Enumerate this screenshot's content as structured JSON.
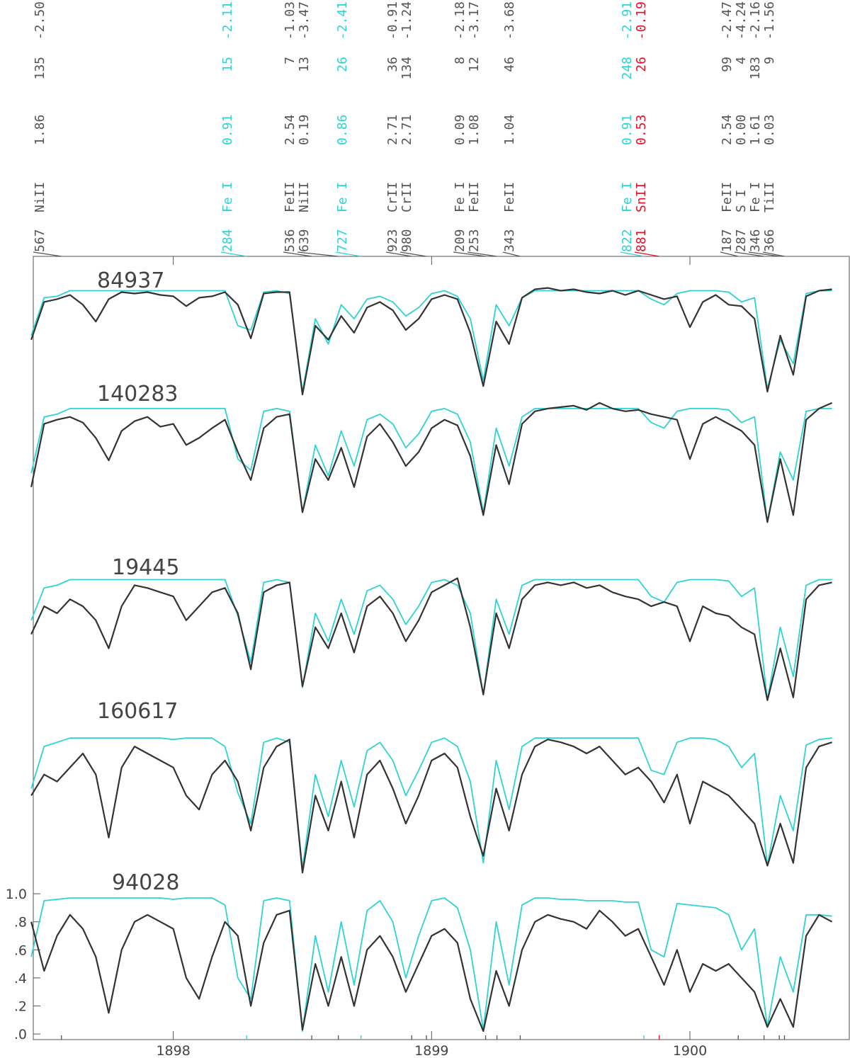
{
  "chart_data": {
    "type": "line",
    "xlim": [
      1897.458,
      1900.617
    ],
    "ylim": [
      -0.04,
      5.545
    ],
    "xticks": [
      1898,
      1899,
      1900
    ],
    "yticks": [
      {
        "value": 0,
        "label": ".0"
      },
      {
        "value": 0.2,
        "label": ".2"
      },
      {
        "value": 0.4,
        "label": ".4"
      },
      {
        "value": 0.6,
        "label": ".6"
      },
      {
        "value": 0.8,
        "label": ".8"
      },
      {
        "value": 1,
        "label": "1.0"
      }
    ],
    "observed_color": "#333333",
    "synthetic_color": "#2ed3d3",
    "x": [
      1897.45,
      1897.5,
      1897.55,
      1897.6,
      1897.65,
      1897.7,
      1897.75,
      1897.8,
      1897.85,
      1897.9,
      1897.95,
      1898.0,
      1898.05,
      1898.1,
      1898.15,
      1898.2,
      1898.25,
      1898.3,
      1898.35,
      1898.4,
      1898.45,
      1898.5,
      1898.55,
      1898.6,
      1898.65,
      1898.7,
      1898.75,
      1898.8,
      1898.85,
      1898.9,
      1898.95,
      1899.0,
      1899.05,
      1899.1,
      1899.15,
      1899.2,
      1899.25,
      1899.3,
      1899.35,
      1899.4,
      1899.45,
      1899.5,
      1899.55,
      1899.6,
      1899.65,
      1899.7,
      1899.75,
      1899.8,
      1899.85,
      1899.9,
      1899.95,
      1900.0,
      1900.05,
      1900.1,
      1900.15,
      1900.2,
      1900.25,
      1900.3,
      1900.35,
      1900.4,
      1900.45,
      1900.5,
      1900.55
    ],
    "panels": [
      {
        "name": "84937",
        "observed": [
          4.95,
          5.22,
          5.24,
          5.27,
          5.2,
          5.08,
          5.24,
          5.29,
          5.28,
          5.29,
          5.27,
          5.26,
          5.19,
          5.25,
          5.26,
          5.29,
          5.2,
          4.96,
          5.28,
          5.29,
          5.29,
          4.56,
          5.05,
          4.95,
          5.12,
          5.0,
          5.18,
          5.22,
          5.16,
          5.02,
          5.1,
          5.24,
          5.27,
          5.24,
          5.0,
          4.62,
          5.08,
          4.92,
          5.25,
          5.31,
          5.32,
          5.3,
          5.31,
          5.29,
          5.28,
          5.3,
          5.27,
          5.3,
          5.27,
          5.24,
          5.26,
          5.04,
          5.22,
          5.27,
          5.2,
          5.19,
          5.1,
          4.58,
          4.98,
          4.7,
          5.26,
          5.3,
          5.31
        ],
        "synthetic": [
          4.98,
          5.25,
          5.26,
          5.3,
          5.3,
          5.3,
          5.3,
          5.3,
          5.3,
          5.3,
          5.3,
          5.3,
          5.3,
          5.3,
          5.3,
          5.3,
          5.05,
          5.02,
          5.29,
          5.3,
          5.28,
          4.58,
          5.1,
          4.92,
          5.2,
          5.1,
          5.24,
          5.26,
          5.22,
          5.12,
          5.18,
          5.28,
          5.3,
          5.26,
          5.1,
          4.66,
          5.2,
          5.05,
          5.25,
          5.3,
          5.3,
          5.3,
          5.3,
          5.3,
          5.3,
          5.3,
          5.3,
          5.3,
          5.24,
          5.2,
          5.28,
          5.3,
          5.3,
          5.3,
          5.29,
          5.22,
          5.25,
          4.6,
          4.95,
          4.78,
          5.28,
          5.3,
          5.3
        ]
      },
      {
        "name": "140283",
        "observed": [
          3.9,
          4.35,
          4.38,
          4.4,
          4.36,
          4.25,
          4.09,
          4.3,
          4.37,
          4.4,
          4.33,
          4.35,
          4.2,
          4.25,
          4.32,
          4.38,
          4.15,
          3.95,
          4.32,
          4.4,
          4.42,
          3.72,
          4.1,
          3.95,
          4.18,
          3.9,
          4.26,
          4.35,
          4.22,
          4.05,
          4.15,
          4.32,
          4.38,
          4.34,
          4.12,
          3.7,
          4.2,
          3.92,
          4.35,
          4.44,
          4.46,
          4.47,
          4.48,
          4.45,
          4.5,
          4.46,
          4.44,
          4.45,
          4.42,
          4.4,
          4.38,
          4.1,
          4.35,
          4.4,
          4.35,
          4.3,
          4.2,
          3.65,
          4.1,
          3.7,
          4.38,
          4.46,
          4.5
        ],
        "synthetic": [
          4.0,
          4.4,
          4.42,
          4.46,
          4.46,
          4.46,
          4.46,
          4.46,
          4.46,
          4.46,
          4.46,
          4.46,
          4.46,
          4.46,
          4.46,
          4.46,
          4.1,
          4.02,
          4.44,
          4.46,
          4.44,
          3.72,
          4.2,
          3.98,
          4.3,
          4.05,
          4.38,
          4.42,
          4.35,
          4.18,
          4.28,
          4.44,
          4.46,
          4.42,
          4.22,
          3.72,
          4.32,
          4.05,
          4.4,
          4.46,
          4.46,
          4.46,
          4.46,
          4.46,
          4.46,
          4.46,
          4.46,
          4.46,
          4.36,
          4.32,
          4.44,
          4.46,
          4.46,
          4.46,
          4.45,
          4.36,
          4.4,
          3.65,
          4.15,
          3.95,
          4.44,
          4.46,
          4.46
        ]
      },
      {
        "name": "19445",
        "observed": [
          2.85,
          3.05,
          3.0,
          3.1,
          3.05,
          2.95,
          2.75,
          3.05,
          3.2,
          3.18,
          3.15,
          3.12,
          2.95,
          3.05,
          3.15,
          3.18,
          3.0,
          2.6,
          3.15,
          3.2,
          3.22,
          2.48,
          2.9,
          2.75,
          3.0,
          2.72,
          3.05,
          3.12,
          3.0,
          2.8,
          2.95,
          3.15,
          3.2,
          3.25,
          2.9,
          2.42,
          3.0,
          2.75,
          3.1,
          3.2,
          3.22,
          3.2,
          3.22,
          3.18,
          3.2,
          3.15,
          3.12,
          3.1,
          3.05,
          3.08,
          3.05,
          2.8,
          3.05,
          3.0,
          2.98,
          2.9,
          2.85,
          2.38,
          2.75,
          2.4,
          3.1,
          3.2,
          3.22
        ],
        "synthetic": [
          2.95,
          3.18,
          3.2,
          3.24,
          3.24,
          3.24,
          3.24,
          3.24,
          3.24,
          3.24,
          3.24,
          3.24,
          3.24,
          3.24,
          3.24,
          3.24,
          2.98,
          2.65,
          3.22,
          3.24,
          3.22,
          2.47,
          3.0,
          2.8,
          3.1,
          2.85,
          3.16,
          3.2,
          3.1,
          2.92,
          3.05,
          3.22,
          3.24,
          3.2,
          3.0,
          2.42,
          3.1,
          2.85,
          3.2,
          3.24,
          3.24,
          3.24,
          3.24,
          3.24,
          3.24,
          3.24,
          3.24,
          3.24,
          3.12,
          3.08,
          3.22,
          3.24,
          3.24,
          3.24,
          3.23,
          3.12,
          3.18,
          2.38,
          2.9,
          2.55,
          3.2,
          3.24,
          3.24
        ]
      },
      {
        "name": "160617",
        "observed": [
          1.7,
          1.85,
          1.8,
          1.9,
          2.0,
          1.85,
          1.4,
          1.9,
          2.05,
          2.0,
          1.95,
          1.9,
          1.7,
          1.6,
          1.85,
          1.95,
          1.8,
          1.45,
          1.9,
          2.05,
          2.1,
          1.15,
          1.7,
          1.45,
          1.8,
          1.4,
          1.85,
          1.95,
          1.75,
          1.5,
          1.7,
          1.95,
          2.0,
          1.9,
          1.55,
          1.27,
          1.75,
          1.45,
          1.85,
          2.05,
          2.1,
          2.08,
          2.05,
          2.0,
          2.05,
          1.95,
          1.85,
          1.9,
          1.8,
          1.65,
          1.85,
          1.5,
          1.8,
          1.75,
          1.7,
          1.6,
          1.5,
          1.2,
          1.5,
          1.22,
          1.9,
          2.05,
          2.08
        ],
        "synthetic": [
          1.75,
          2.05,
          2.08,
          2.11,
          2.11,
          2.11,
          2.11,
          2.11,
          2.11,
          2.11,
          2.11,
          2.1,
          2.11,
          2.11,
          2.11,
          2.05,
          1.72,
          1.5,
          2.08,
          2.11,
          2.08,
          1.18,
          1.85,
          1.55,
          1.95,
          1.62,
          2.02,
          2.08,
          1.95,
          1.7,
          1.88,
          2.08,
          2.11,
          2.05,
          1.8,
          1.22,
          1.95,
          1.6,
          2.05,
          2.11,
          2.11,
          2.11,
          2.11,
          2.11,
          2.11,
          2.11,
          2.11,
          2.11,
          1.88,
          1.85,
          2.08,
          2.11,
          2.11,
          2.1,
          2.05,
          1.9,
          2.0,
          1.2,
          1.7,
          1.45,
          2.06,
          2.1,
          2.11
        ]
      },
      {
        "name": "94028",
        "observed": [
          0.8,
          0.45,
          0.7,
          0.85,
          0.75,
          0.55,
          0.15,
          0.6,
          0.8,
          0.85,
          0.8,
          0.75,
          0.4,
          0.25,
          0.55,
          0.8,
          0.7,
          0.2,
          0.65,
          0.85,
          0.88,
          0.03,
          0.5,
          0.2,
          0.55,
          0.2,
          0.6,
          0.7,
          0.55,
          0.3,
          0.5,
          0.7,
          0.75,
          0.65,
          0.25,
          0.02,
          0.45,
          0.2,
          0.6,
          0.8,
          0.85,
          0.82,
          0.8,
          0.75,
          0.88,
          0.8,
          0.7,
          0.75,
          0.55,
          0.35,
          0.6,
          0.3,
          0.5,
          0.45,
          0.5,
          0.4,
          0.3,
          0.05,
          0.25,
          0.05,
          0.7,
          0.85,
          0.8
        ],
        "synthetic": [
          0.55,
          0.95,
          0.96,
          0.97,
          0.97,
          0.97,
          0.97,
          0.97,
          0.97,
          0.97,
          0.97,
          0.96,
          0.97,
          0.97,
          0.97,
          0.92,
          0.4,
          0.25,
          0.95,
          0.97,
          0.95,
          0.02,
          0.7,
          0.3,
          0.8,
          0.35,
          0.88,
          0.95,
          0.8,
          0.4,
          0.7,
          0.95,
          0.97,
          0.9,
          0.6,
          0.03,
          0.8,
          0.35,
          0.92,
          0.97,
          0.97,
          0.96,
          0.96,
          0.95,
          0.95,
          0.95,
          0.94,
          0.94,
          0.6,
          0.55,
          0.93,
          0.92,
          0.91,
          0.9,
          0.85,
          0.6,
          0.75,
          0.05,
          0.55,
          0.3,
          0.85,
          0.85,
          0.84
        ]
      }
    ],
    "lines": [
      {
        "label": "567",
        "wavelength": 1897.567,
        "species": "NiII",
        "chi": "1.86",
        "ew": "135",
        "loggf": "-2.50",
        "color": "#555555"
      },
      {
        "label": "284",
        "wavelength": 1898.284,
        "species": "Fe I",
        "chi": "0.91",
        "ew": "15",
        "loggf": "-2.11",
        "color": "#2ed3d3"
      },
      {
        "label": "536",
        "wavelength": 1898.536,
        "species": "FeII",
        "chi": "2.54",
        "ew": "7",
        "loggf": "-1.03",
        "color": "#555555"
      },
      {
        "label": "639",
        "wavelength": 1898.639,
        "species": "NiII",
        "chi": "0.19",
        "ew": "13",
        "loggf": "-3.47",
        "color": "#555555"
      },
      {
        "label": "727",
        "wavelength": 1898.727,
        "species": "Fe I",
        "chi": "0.86",
        "ew": "26",
        "loggf": "-2.41",
        "color": "#2ed3d3"
      },
      {
        "label": "923",
        "wavelength": 1898.923,
        "species": "CrII",
        "chi": "2.71",
        "ew": "36",
        "loggf": "-0.91",
        "color": "#555555"
      },
      {
        "label": "980",
        "wavelength": 1898.98,
        "species": "CrII",
        "chi": "2.71",
        "ew": "134",
        "loggf": "-1.24",
        "color": "#555555"
      },
      {
        "label": "209",
        "wavelength": 1899.209,
        "species": "Fe I",
        "chi": "0.09",
        "ew": "8",
        "loggf": "-2.18",
        "color": "#555555"
      },
      {
        "label": "253",
        "wavelength": 1899.253,
        "species": "FeII",
        "chi": "1.08",
        "ew": "12",
        "loggf": "-3.17",
        "color": "#555555"
      },
      {
        "label": "343",
        "wavelength": 1899.343,
        "species": "FeII",
        "chi": "1.04",
        "ew": "46",
        "loggf": "-3.68",
        "color": "#555555"
      },
      {
        "label": "822",
        "wavelength": 1899.822,
        "species": "Fe I",
        "chi": "0.91",
        "ew": "248",
        "loggf": "-2.91",
        "color": "#2ed3d3"
      },
      {
        "label": "881",
        "wavelength": 1899.881,
        "species": "SnII",
        "chi": "0.53",
        "ew": "26",
        "loggf": "-0.19",
        "color": "#e8102a"
      },
      {
        "label": "187",
        "wavelength": 1900.187,
        "species": "FeII",
        "chi": "2.54",
        "ew": "99",
        "loggf": "-2.47",
        "color": "#555555"
      },
      {
        "label": "287",
        "wavelength": 1900.287,
        "species": "S I",
        "chi": "0.00",
        "ew": "4",
        "loggf": "-4.24",
        "color": "#555555"
      },
      {
        "label": "346",
        "wavelength": 1900.346,
        "species": "Fe I",
        "chi": "1.61",
        "ew": "183",
        "loggf": "-2.16",
        "color": "#555555"
      },
      {
        "label": "366",
        "wavelength": 1900.366,
        "species": "TiII",
        "chi": "0.03",
        "ew": "9",
        "loggf": "-1.56",
        "color": "#555555"
      }
    ]
  }
}
